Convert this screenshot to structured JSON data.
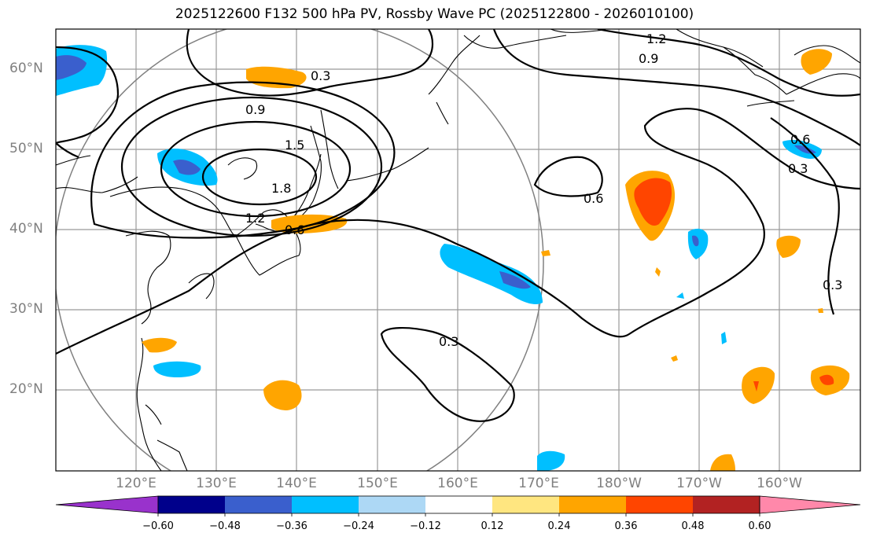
{
  "title": "2025122600 F132 500 hPa PV, Rossby Wave PC (2025122800 - 2026010100)",
  "lat_labels": [
    "60°N",
    "50°N",
    "40°N",
    "30°N",
    "20°N"
  ],
  "lon_labels": [
    "120°E",
    "130°E",
    "140°E",
    "150°E",
    "160°E",
    "170°E",
    "180°W",
    "170°W",
    "160°W"
  ],
  "contour_labels": [
    "1.2",
    "0.9",
    "0.3",
    "0.9",
    "1.5",
    "1.8",
    "1.2",
    "0.6",
    "0.6",
    "0.6",
    "0.3",
    "0.3",
    "0.3"
  ],
  "colorbar": {
    "ticks": [
      "−0.60",
      "−0.48",
      "−0.36",
      "−0.24",
      "−0.12",
      "0.12",
      "0.24",
      "0.36",
      "0.48",
      "0.60"
    ],
    "colors": [
      "#9932CC",
      "#00008B",
      "#3A5FCD",
      "#00BFFF",
      "#ADD8F5",
      "#ffffff",
      "#FFE680",
      "#FFA500",
      "#FF4500",
      "#B22222",
      "#FF88AA"
    ]
  }
}
